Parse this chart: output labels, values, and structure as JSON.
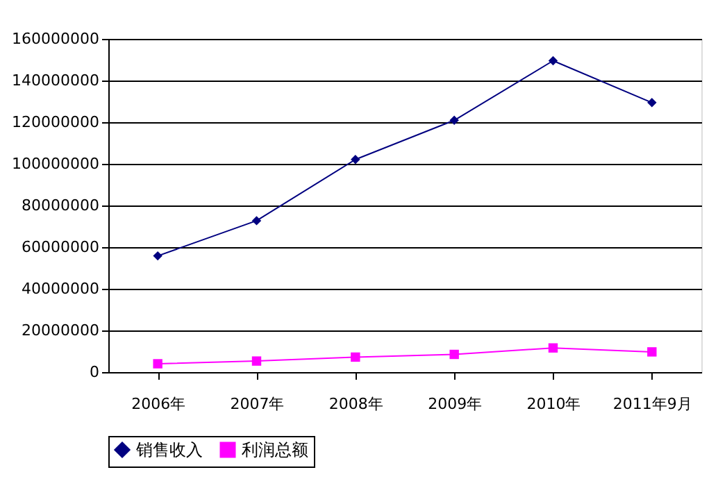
{
  "chart_data": {
    "type": "line",
    "categories": [
      "2006年",
      "2007年",
      "2008年",
      "2009年",
      "2010年",
      "2011年9月"
    ],
    "series": [
      {
        "name": "销售收入",
        "color": "#000080",
        "marker": "diamond",
        "values": [
          55800000,
          72700000,
          102100000,
          120900000,
          149500000,
          129400000
        ]
      },
      {
        "name": "利润总额",
        "color": "#ff00ff",
        "marker": "square",
        "values": [
          4000000,
          5300000,
          7200000,
          8500000,
          11600000,
          9700000
        ]
      }
    ],
    "ylim": [
      0,
      160000000
    ],
    "yticks": [
      0,
      20000000,
      40000000,
      60000000,
      80000000,
      100000000,
      120000000,
      140000000,
      160000000
    ],
    "grid": "y",
    "legend": "bottom",
    "line_style": "solid"
  }
}
